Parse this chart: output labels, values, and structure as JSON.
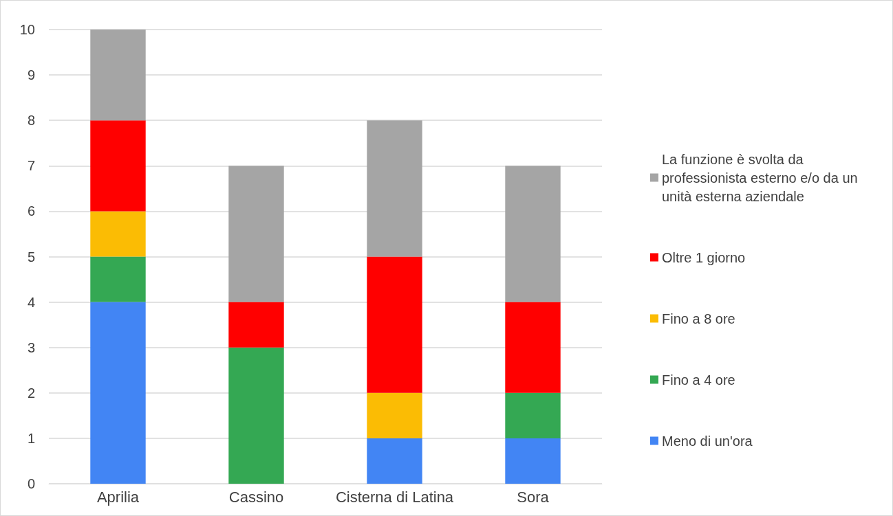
{
  "chart_data": {
    "type": "bar",
    "stacked": true,
    "categories": [
      "Aprilia",
      "Cassino",
      "Cisterna di Latina",
      "Sora"
    ],
    "series": [
      {
        "name": "Meno di un'ora",
        "color": "#4285f4",
        "values": [
          4,
          0,
          1,
          1
        ]
      },
      {
        "name": "Fino a 4 ore",
        "color": "#34a853",
        "values": [
          1,
          3,
          0,
          1
        ]
      },
      {
        "name": "Fino a 8 ore",
        "color": "#fbbc04",
        "values": [
          1,
          0,
          1,
          0
        ]
      },
      {
        "name": "Oltre 1 giorno",
        "color": "#ff0000",
        "values": [
          2,
          1,
          3,
          2
        ]
      },
      {
        "name": "La funzione è svolta da professionista esterno e/o da un unità esterna aziendale",
        "color": "#a5a5a5",
        "values": [
          2,
          3,
          3,
          3
        ]
      }
    ],
    "ylim": [
      0,
      10
    ],
    "yticks": [
      0,
      1,
      2,
      3,
      4,
      5,
      6,
      7,
      8,
      9,
      10
    ],
    "grid": "y",
    "legend": "right"
  }
}
